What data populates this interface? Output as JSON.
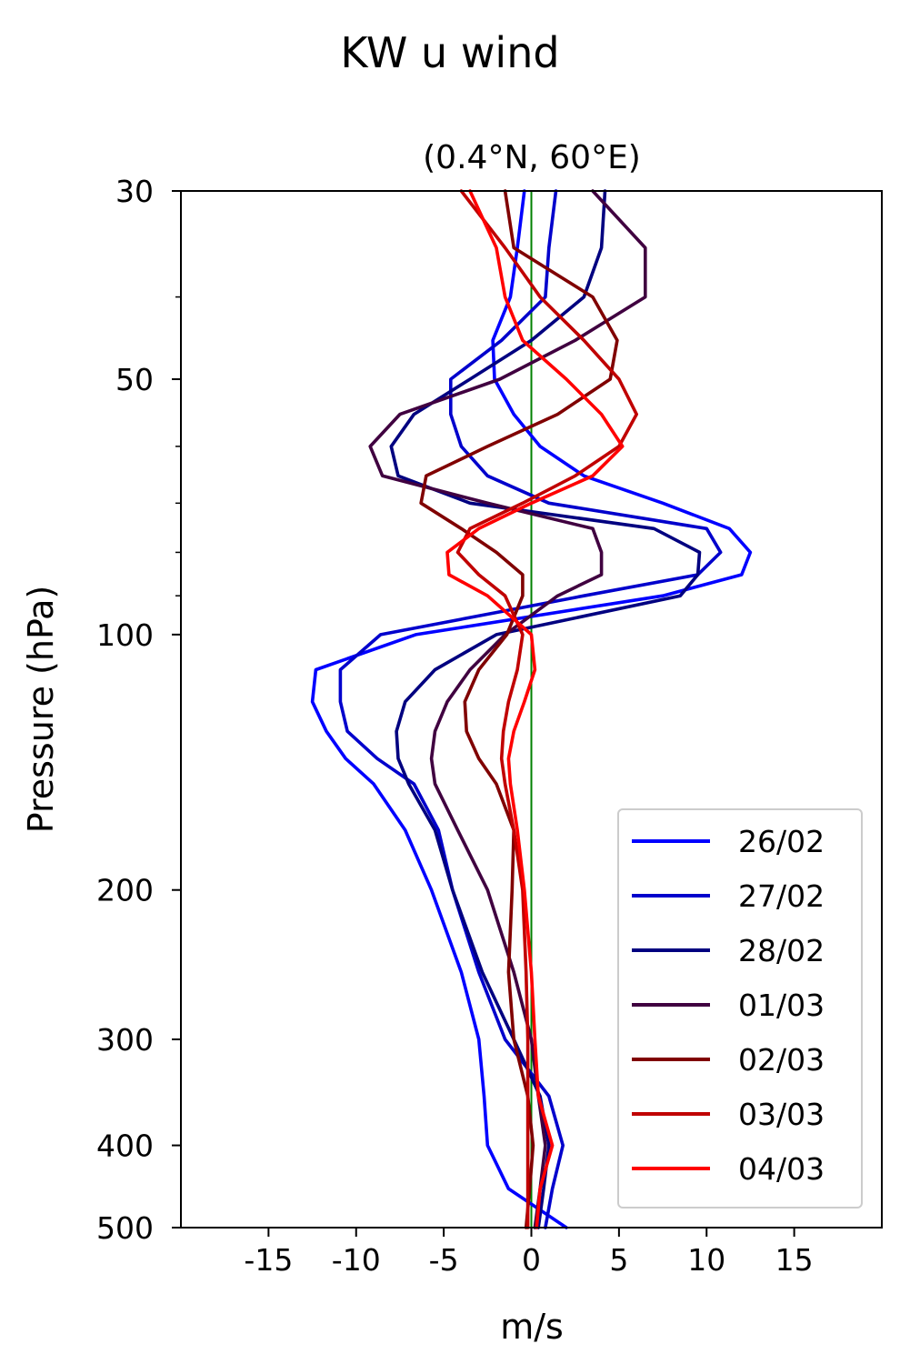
{
  "chart_data": {
    "type": "line",
    "title": "KW u wind",
    "subtitle": "(0.4°N, 60°E)",
    "xlabel": "m/s",
    "ylabel": "Pressure (hPa)",
    "xlim": [
      -20,
      20
    ],
    "ylim": [
      500,
      30
    ],
    "y_scale": "log",
    "xticks": [
      -15,
      -10,
      -5,
      0,
      5,
      10,
      15
    ],
    "xtick_labels": [
      "-15",
      "-10",
      "-5",
      "0",
      "5",
      "10",
      "15"
    ],
    "yticks": [
      30,
      50,
      100,
      200,
      300,
      400,
      500
    ],
    "ytick_labels": [
      "30",
      "50",
      "100",
      "200",
      "300",
      "400",
      "500"
    ],
    "yminor_ticks": [
      40,
      60,
      70,
      80,
      90
    ],
    "reference_line": {
      "x": 0,
      "color": "#008000"
    },
    "legend_position": "lower right",
    "grid": false,
    "pressure_levels": [
      30,
      35,
      40,
      45,
      50,
      55,
      60,
      65,
      70,
      75,
      80,
      85,
      90,
      100,
      110,
      120,
      130,
      140,
      150,
      170,
      200,
      250,
      300,
      350,
      400,
      450,
      500
    ],
    "series": [
      {
        "name": "26/02",
        "color": "#0000ff",
        "values": [
          -0.4,
          -0.8,
          -1.2,
          -2.2,
          -2.1,
          -1.0,
          0.5,
          3.0,
          7.5,
          11.3,
          12.5,
          12.0,
          7.5,
          -6.6,
          -12.3,
          -12.5,
          -11.7,
          -10.6,
          -9.0,
          -7.2,
          -5.7,
          -4.0,
          -3.0,
          -2.7,
          -2.5,
          -1.3,
          2.0
        ]
      },
      {
        "name": "27/02",
        "color": "#0000cc",
        "values": [
          1.4,
          1.0,
          0.8,
          -1.7,
          -4.6,
          -4.6,
          -4.0,
          -2.5,
          1.0,
          10.0,
          10.8,
          9.5,
          3.0,
          -8.6,
          -10.9,
          -10.9,
          -10.5,
          -8.8,
          -6.7,
          -5.3,
          -4.5,
          -3.0,
          -1.5,
          1.0,
          1.8,
          1.2,
          0.8
        ]
      },
      {
        "name": "28/02",
        "color": "#000080",
        "values": [
          4.2,
          4.0,
          3.0,
          0.0,
          -3.5,
          -6.7,
          -8.0,
          -7.6,
          -3.5,
          7.0,
          9.6,
          9.5,
          8.5,
          -2.0,
          -5.5,
          -7.2,
          -7.7,
          -7.6,
          -7.0,
          -5.5,
          -4.5,
          -2.8,
          -1.0,
          0.5,
          1.0,
          0.7,
          0.4
        ]
      },
      {
        "name": "01/03",
        "color": "#400040",
        "values": [
          3.5,
          6.5,
          6.5,
          2.5,
          -1.8,
          -7.5,
          -9.2,
          -8.5,
          -2.5,
          3.5,
          4.0,
          4.0,
          1.5,
          -1.5,
          -3.5,
          -4.8,
          -5.5,
          -5.7,
          -5.5,
          -4.2,
          -2.5,
          -1.0,
          0.0,
          0.4,
          0.8,
          0.5,
          0.2
        ]
      },
      {
        "name": "02/03",
        "color": "#800000",
        "values": [
          -1.5,
          -1.0,
          3.5,
          4.9,
          4.5,
          1.5,
          -2.5,
          -6.0,
          -6.3,
          -4.0,
          -2.0,
          -0.5,
          -0.5,
          -1.4,
          -3.0,
          -3.8,
          -3.7,
          -3.0,
          -2.0,
          -1.0,
          -1.1,
          -1.3,
          -1.0,
          -0.2,
          0.1,
          -0.1,
          -0.3
        ]
      },
      {
        "name": "03/03",
        "color": "#c00000",
        "values": [
          -4.0,
          -1.5,
          0.5,
          3.0,
          5.0,
          6.0,
          5.0,
          2.5,
          -0.5,
          -3.5,
          -4.2,
          -3.0,
          -1.5,
          -0.5,
          -0.8,
          -1.3,
          -1.6,
          -1.7,
          -1.5,
          -1.0,
          -0.5,
          -0.3,
          -0.2,
          -0.2,
          -0.2,
          -0.2,
          -0.2
        ]
      },
      {
        "name": "04/03",
        "color": "#ff0000",
        "values": [
          -3.5,
          -2.0,
          -1.5,
          -0.5,
          2.0,
          4.0,
          5.2,
          3.5,
          0.0,
          -3.0,
          -4.8,
          -4.7,
          -2.5,
          0.0,
          0.2,
          -0.4,
          -1.0,
          -1.3,
          -1.2,
          -0.8,
          -0.4,
          0.0,
          0.2,
          0.4,
          1.2,
          0.5,
          0.3
        ]
      }
    ]
  }
}
